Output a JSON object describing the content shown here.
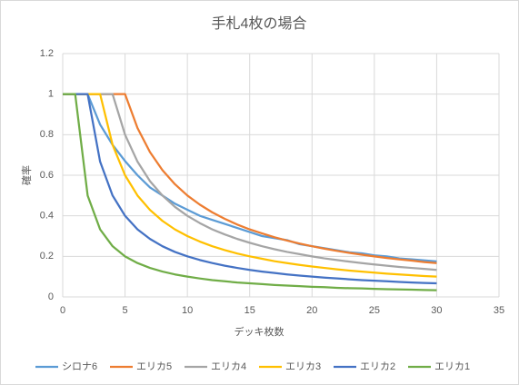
{
  "chart_data": {
    "type": "line",
    "title": "手札4枚の場合",
    "x_label": "デッキ枚数",
    "y_label": "確率",
    "x": [
      0,
      1,
      2,
      3,
      4,
      5,
      6,
      7,
      8,
      9,
      10,
      11,
      12,
      13,
      14,
      15,
      16,
      17,
      18,
      19,
      20,
      21,
      22,
      23,
      24,
      25,
      26,
      27,
      28,
      29,
      30
    ],
    "series": [
      {
        "name": "シロナ6",
        "color": "#5b9bd5",
        "values": [
          1,
          1,
          1,
          0.85,
          0.75,
          0.67,
          0.6,
          0.54,
          0.5,
          0.46,
          0.43,
          0.4,
          0.38,
          0.36,
          0.34,
          0.32,
          0.3,
          0.29,
          0.28,
          0.26,
          0.25,
          0.24,
          0.23,
          0.22,
          0.215,
          0.205,
          0.2,
          0.19,
          0.185,
          0.18,
          0.175
        ]
      },
      {
        "name": "エリカ5",
        "color": "#ed7d31",
        "values": [
          1,
          1,
          1,
          1,
          1,
          1,
          0.833,
          0.714,
          0.625,
          0.556,
          0.5,
          0.455,
          0.417,
          0.385,
          0.357,
          0.333,
          0.313,
          0.294,
          0.278,
          0.263,
          0.25,
          0.238,
          0.227,
          0.217,
          0.208,
          0.2,
          0.192,
          0.185,
          0.179,
          0.172,
          0.167
        ]
      },
      {
        "name": "エリカ4",
        "color": "#a5a5a5",
        "values": [
          1,
          1,
          1,
          1,
          1,
          0.8,
          0.667,
          0.571,
          0.5,
          0.444,
          0.4,
          0.364,
          0.333,
          0.308,
          0.286,
          0.267,
          0.25,
          0.235,
          0.222,
          0.211,
          0.2,
          0.19,
          0.182,
          0.174,
          0.167,
          0.16,
          0.154,
          0.148,
          0.143,
          0.138,
          0.133
        ]
      },
      {
        "name": "エリカ3",
        "color": "#ffc000",
        "values": [
          1,
          1,
          1,
          1,
          0.75,
          0.6,
          0.5,
          0.429,
          0.375,
          0.333,
          0.3,
          0.273,
          0.25,
          0.231,
          0.214,
          0.2,
          0.188,
          0.176,
          0.167,
          0.158,
          0.15,
          0.143,
          0.136,
          0.13,
          0.125,
          0.12,
          0.115,
          0.111,
          0.107,
          0.103,
          0.1
        ]
      },
      {
        "name": "エリカ2",
        "color": "#4472c4",
        "values": [
          1,
          1,
          1,
          0.667,
          0.5,
          0.4,
          0.333,
          0.286,
          0.25,
          0.222,
          0.2,
          0.182,
          0.167,
          0.154,
          0.143,
          0.133,
          0.125,
          0.118,
          0.111,
          0.105,
          0.1,
          0.095,
          0.091,
          0.087,
          0.083,
          0.08,
          0.077,
          0.074,
          0.071,
          0.069,
          0.067
        ]
      },
      {
        "name": "エリカ1",
        "color": "#70ad47",
        "values": [
          1,
          1,
          0.5,
          0.333,
          0.25,
          0.2,
          0.167,
          0.143,
          0.125,
          0.111,
          0.1,
          0.091,
          0.083,
          0.077,
          0.071,
          0.067,
          0.063,
          0.059,
          0.056,
          0.053,
          0.05,
          0.048,
          0.045,
          0.043,
          0.042,
          0.04,
          0.038,
          0.037,
          0.036,
          0.034,
          0.033
        ]
      }
    ],
    "xlim": [
      0,
      35
    ],
    "xticks": [
      0,
      5,
      10,
      15,
      20,
      25,
      30,
      35
    ],
    "ylim": [
      0,
      1.2
    ],
    "yticks": [
      0,
      0.2,
      0.4,
      0.6,
      0.8,
      1,
      1.2
    ],
    "grid": true,
    "legend": "bottom"
  }
}
